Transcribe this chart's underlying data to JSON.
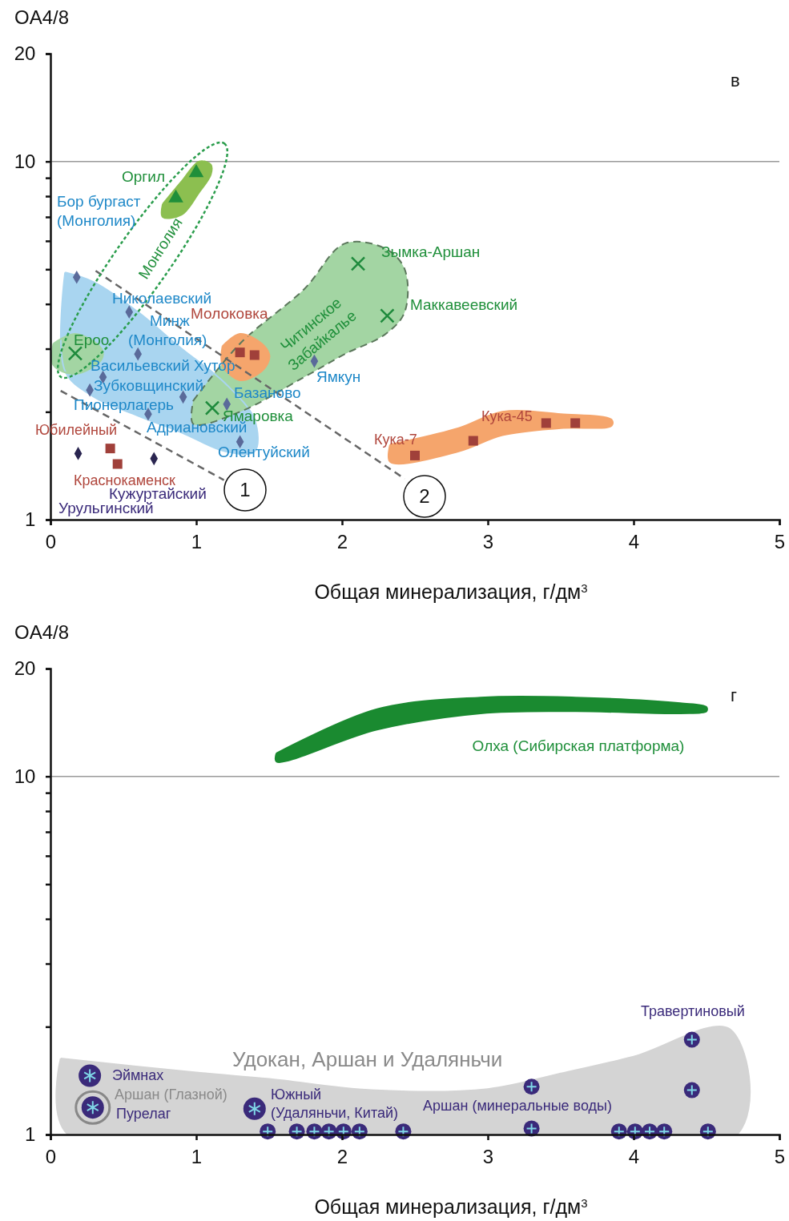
{
  "chart_data": [
    {
      "type": "scatter",
      "ylabel": "OA4/8",
      "xlabel": "Общая минерализация, г/дм$^{3}$",
      "log": "y",
      "grid": false,
      "legend": false,
      "xlim": [
        0,
        5
      ],
      "xticks": [
        0,
        1,
        2,
        3,
        4,
        5
      ],
      "ylim": [
        1,
        20
      ],
      "yticks": [
        1,
        {
          "value": 2,
          "label": null
        },
        {
          "value": 3,
          "label": null
        },
        {
          "value": 4,
          "label": null
        },
        {
          "value": 5,
          "label": null
        },
        {
          "value": 6,
          "label": null
        },
        {
          "value": 7,
          "label": null
        },
        {
          "value": 8,
          "label": null
        },
        {
          "value": 9,
          "label": null
        },
        10,
        20
      ],
      "ref_lines": [
        {
          "axis": "y",
          "value": 10,
          "color": "#999999"
        }
      ],
      "series": [
        {
          "type": "area",
          "color": "#a9d5f0",
          "x": [
            0.1,
            0.3,
            0.6,
            0.9,
            1.2,
            1.4,
            1.4,
            1.2,
            0.9,
            0.6,
            0.3,
            0.1,
            0.1
          ],
          "values": [
            4.9,
            4.6,
            3.8,
            3.0,
            2.4,
            1.9,
            1.55,
            1.55,
            1.75,
            1.95,
            2.2,
            2.6,
            4.9
          ]
        },
        {
          "type": "area",
          "color": "#a3d5a3",
          "line_style": "dashed",
          "x": [
            0.98,
            1.3,
            1.74,
            2.02,
            2.3,
            2.43,
            2.43,
            2.3,
            2.02,
            1.74,
            1.3,
            0.98,
            0.98
          ],
          "values": [
            2.15,
            3.1,
            4.4,
            5.9,
            5.7,
            5.0,
            3.8,
            3.3,
            2.9,
            2.5,
            2.0,
            1.85,
            2.15
          ]
        },
        {
          "type": "area",
          "color": "#a3d5a3",
          "x": [
            0.02,
            0.17,
            0.35,
            0.35,
            0.17,
            0.02,
            0.02
          ],
          "values": [
            3.1,
            3.3,
            3.0,
            2.8,
            2.55,
            2.7,
            3.1
          ]
        },
        {
          "type": "area",
          "color": "#8cbf50",
          "x": [
            0.77,
            0.9,
            1.02,
            1.1,
            1.1,
            1.02,
            0.9,
            0.77,
            0.77
          ],
          "values": [
            7.6,
            8.8,
            10.0,
            9.8,
            9.2,
            8.2,
            7.1,
            7.0,
            7.6
          ]
        },
        {
          "type": "area",
          "color": "#f5a56c",
          "x": [
            1.18,
            1.3,
            1.45,
            1.5,
            1.5,
            1.45,
            1.3,
            1.18,
            1.18
          ],
          "values": [
            3.05,
            3.3,
            3.1,
            2.9,
            2.8,
            2.6,
            2.45,
            2.7,
            3.05
          ]
        },
        {
          "type": "area",
          "color": "#f5a56c",
          "x": [
            2.33,
            2.8,
            3.1,
            3.5,
            3.85,
            3.85,
            3.5,
            3.1,
            2.8,
            2.33,
            2.33
          ],
          "values": [
            1.62,
            1.8,
            2.0,
            1.97,
            1.9,
            1.83,
            1.8,
            1.72,
            1.55,
            1.45,
            1.62
          ]
        },
        {
          "type": "line",
          "color": "#666666",
          "line_style": "dashed",
          "x": [
            0.07,
            1.19
          ],
          "values": [
            2.29,
            1.29
          ]
        },
        {
          "type": "line",
          "color": "#666666",
          "line_style": "dashed",
          "x": [
            0.31,
            2.43
          ],
          "values": [
            4.95,
            1.3
          ]
        },
        {
          "type": "scatter",
          "marker": "triangle",
          "color": "#1f8f3a",
          "x": [
            1.0,
            0.86
          ],
          "values": [
            9.3,
            7.9
          ]
        },
        {
          "type": "scatter",
          "marker": "diamond",
          "color": "#5a6a9a",
          "x": [
            0.18,
            0.54,
            0.6,
            0.36,
            0.27,
            0.91,
            0.67,
            1.3,
            1.21,
            1.81
          ],
          "values": [
            4.75,
            3.8,
            2.9,
            2.5,
            2.3,
            2.2,
            1.97,
            1.65,
            2.1,
            2.77
          ]
        },
        {
          "type": "scatter",
          "marker": "square",
          "color": "#a0403a",
          "x": [
            1.3,
            1.4,
            2.5,
            2.9,
            3.4,
            3.6,
            0.41,
            0.46
          ],
          "values": [
            2.93,
            2.88,
            1.51,
            1.66,
            1.86,
            1.86,
            1.58,
            1.43
          ]
        },
        {
          "type": "scatter",
          "marker": "diamond",
          "color": "#2a2550",
          "x": [
            0.19,
            0.71
          ],
          "values": [
            1.53,
            1.48
          ]
        },
        {
          "type": "scatter",
          "marker": "cross",
          "color": "#1e8a3c",
          "x": [
            0.17,
            1.11,
            2.11,
            2.31
          ],
          "values": [
            2.91,
            2.05,
            5.18,
            3.71
          ]
        }
      ],
      "annotations": [
        "в",
        "Оргил",
        "Бор бургаст",
        "(Монголия)",
        "Монголия",
        "Зымка-Аршан",
        "Николаевский",
        "Маккавеевский",
        "Молоковка",
        "Минж",
        "Читинское",
        "Забайкалье",
        "Ероо",
        "(Монголия)",
        "Васильевский Хутор",
        "Ямкун",
        "Зубковщинский",
        "Базаново",
        "Пионерлагерь",
        "Ямаровка",
        "Кука-45",
        "Адриановский",
        "Юбилейный",
        "Кука-7",
        "Олентуйский",
        "Краснокаменск",
        "Кужуртайский",
        "Урульгинский",
        "1",
        "2"
      ]
    },
    {
      "type": "scatter",
      "ylabel": "OA4/8",
      "xlabel": "Общая минерализация, г/дм$^{3}$",
      "log": "y",
      "grid": false,
      "legend": false,
      "xlim": [
        0,
        5
      ],
      "xticks": [
        0,
        1,
        2,
        3,
        4,
        5
      ],
      "ylim": [
        1,
        20
      ],
      "yticks": [
        1,
        {
          "value": 2,
          "label": null
        },
        {
          "value": 3,
          "label": null
        },
        {
          "value": 4,
          "label": null
        },
        {
          "value": 5,
          "label": null
        },
        {
          "value": 6,
          "label": null
        },
        {
          "value": 7,
          "label": null
        },
        {
          "value": 8,
          "label": null
        },
        {
          "value": 9,
          "label": null
        },
        10,
        20
      ],
      "ref_lines": [
        {
          "axis": "y",
          "value": 10,
          "color": "#999999"
        }
      ],
      "series": [
        {
          "type": "area",
          "color": "#d4d4d4",
          "x": [
            0.07,
            1.0,
            1.5,
            2.2,
            3.0,
            3.5,
            4.0,
            4.66,
            4.71,
            0.12,
            0.07
          ],
          "values": [
            1.63,
            1.49,
            1.43,
            1.33,
            1.34,
            1.48,
            1.65,
            1.97,
            1,
            1,
            1.63
          ]
        },
        {
          "type": "area",
          "color": "#1a8a30",
          "x": [
            1.55,
            2.24,
            2.95,
            3.6,
            4.32,
            4.5,
            4.5,
            4.32,
            3.6,
            2.95,
            2.24,
            1.55,
            1.55
          ],
          "values": [
            11.6,
            15.4,
            16.6,
            16.6,
            16.0,
            15.6,
            15.2,
            15.0,
            15.2,
            15.0,
            13.5,
            11.0,
            11.6
          ]
        },
        {
          "type": "scatter",
          "marker": "circle",
          "color": "#3a2a7a",
          "x": [
            1.49,
            1.69,
            1.81,
            1.91,
            2.01,
            2.12,
            2.42,
            3.3,
            3.9,
            4.01,
            4.11,
            4.21,
            4.51,
            3.3,
            4.4,
            4.4
          ],
          "values": [
            1.02,
            1.02,
            1.02,
            1.02,
            1.02,
            1.02,
            1.02,
            1.04,
            1.02,
            1.02,
            1.02,
            1.02,
            1.02,
            1.36,
            1.84,
            1.33
          ]
        },
        {
          "type": "scatter",
          "color": "#3a2a7a",
          "x": [
            0.27,
            0.29,
            1.4
          ],
          "values": [
            1.46,
            1.19,
            1.18
          ]
        }
      ],
      "annotations": [
        "г",
        "Олха (Сибирская платформа)",
        "Травертиновый",
        "Удокан, Аршан и Удаляньчи",
        "Эймнах",
        "Аршан (Глазной)",
        "Пурелаг",
        "Южный",
        "(Удаляньчи, Китай)",
        "Аршан (минеральные воды)"
      ]
    }
  ]
}
